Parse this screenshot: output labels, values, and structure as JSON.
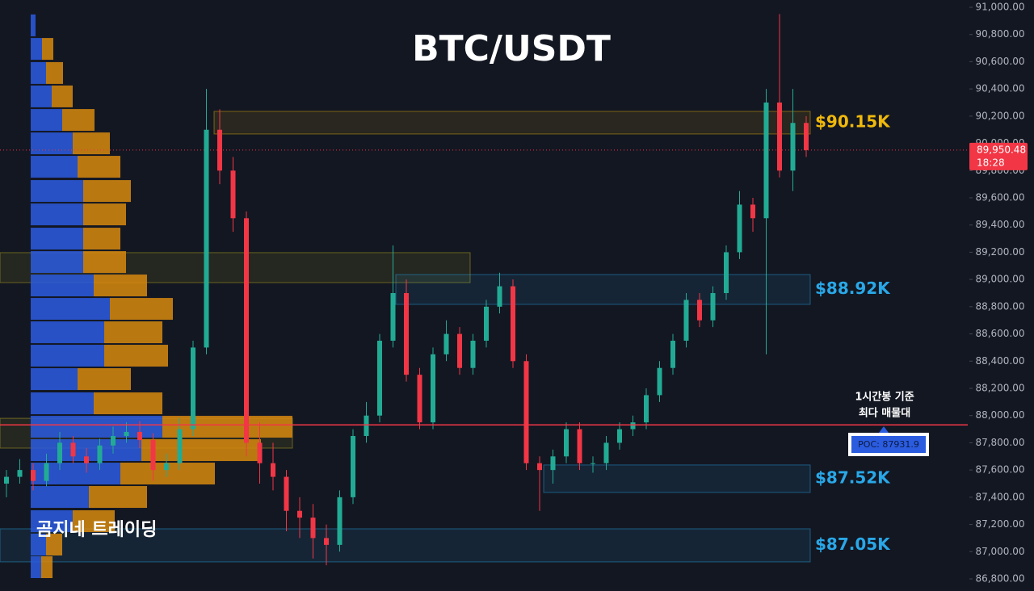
{
  "chart_data": {
    "type": "candlestick",
    "title": "BTC/USDT",
    "watermark": "곰지네 트레이딩",
    "up_color": "#22ab94",
    "down_color": "#f23645",
    "ylim": [
      86800,
      91000
    ],
    "yticks": [
      {
        "value": 91000,
        "label": "91,000.00"
      },
      {
        "value": 90800,
        "label": "90,800.00"
      },
      {
        "value": 90600,
        "label": "90,600.00"
      },
      {
        "value": 90400,
        "label": "90,400.00"
      },
      {
        "value": 90200,
        "label": "90,200.00"
      },
      {
        "value": 90000,
        "label": "90,000.00"
      },
      {
        "value": 89800,
        "label": "89,800.00"
      },
      {
        "value": 89600,
        "label": "89,600.00"
      },
      {
        "value": 89400,
        "label": "89,400.00"
      },
      {
        "value": 89200,
        "label": "89,200.00"
      },
      {
        "value": 89000,
        "label": "89,000.00"
      },
      {
        "value": 88800,
        "label": "88,800.00"
      },
      {
        "value": 88600,
        "label": "88,600.00"
      },
      {
        "value": 88400,
        "label": "88,400.00"
      },
      {
        "value": 88200,
        "label": "88,200.00"
      },
      {
        "value": 88000,
        "label": "88,000.00"
      },
      {
        "value": 87800,
        "label": "87,800.00"
      },
      {
        "value": 87600,
        "label": "87,600.00"
      },
      {
        "value": 87400,
        "label": "87,400.00"
      },
      {
        "value": 87200,
        "label": "87,200.00"
      },
      {
        "value": 87000,
        "label": "87,000.00"
      },
      {
        "value": 86800,
        "label": "86,800.00"
      }
    ],
    "grid": false,
    "candles": [
      [
        87500,
        87600,
        87400,
        87550
      ],
      [
        87550,
        87680,
        87500,
        87600
      ],
      [
        87600,
        87650,
        87450,
        87520
      ],
      [
        87520,
        87720,
        87480,
        87650
      ],
      [
        87650,
        87880,
        87600,
        87800
      ],
      [
        87800,
        87850,
        87650,
        87700
      ],
      [
        87700,
        87760,
        87580,
        87650
      ],
      [
        87650,
        87830,
        87600,
        87780
      ],
      [
        87780,
        87920,
        87720,
        87850
      ],
      [
        87850,
        87950,
        87800,
        87880
      ],
      [
        87880,
        87960,
        87760,
        87820
      ],
      [
        87820,
        87870,
        87520,
        87600
      ],
      [
        87600,
        87720,
        87550,
        87650
      ],
      [
        87650,
        87980,
        87600,
        87900
      ],
      [
        87900,
        88550,
        87850,
        88500
      ],
      [
        88500,
        90400,
        88450,
        90100
      ],
      [
        90100,
        90250,
        89700,
        89800
      ],
      [
        89800,
        89900,
        89350,
        89450
      ],
      [
        89450,
        89500,
        87700,
        87800
      ],
      [
        87800,
        87950,
        87500,
        87650
      ],
      [
        87650,
        87800,
        87450,
        87550
      ],
      [
        87550,
        87600,
        87150,
        87300
      ],
      [
        87300,
        87400,
        87100,
        87250
      ],
      [
        87250,
        87350,
        86950,
        87100
      ],
      [
        87100,
        87200,
        86900,
        87050
      ],
      [
        87050,
        87450,
        87000,
        87400
      ],
      [
        87400,
        87900,
        87350,
        87850
      ],
      [
        87850,
        88100,
        87800,
        88000
      ],
      [
        88000,
        88600,
        87950,
        88550
      ],
      [
        88550,
        89250,
        88500,
        88900
      ],
      [
        88900,
        89000,
        88250,
        88300
      ],
      [
        88300,
        88350,
        87900,
        87950
      ],
      [
        87950,
        88500,
        87900,
        88450
      ],
      [
        88450,
        88700,
        88400,
        88600
      ],
      [
        88600,
        88650,
        88300,
        88350
      ],
      [
        88350,
        88600,
        88300,
        88550
      ],
      [
        88550,
        88850,
        88500,
        88800
      ],
      [
        88800,
        89050,
        88750,
        88950
      ],
      [
        88950,
        89000,
        88350,
        88400
      ],
      [
        88400,
        88450,
        87600,
        87650
      ],
      [
        87650,
        87700,
        87300,
        87600
      ],
      [
        87600,
        87750,
        87500,
        87700
      ],
      [
        87700,
        87950,
        87650,
        87900
      ],
      [
        87900,
        87950,
        87600,
        87650
      ],
      [
        87650,
        87700,
        87580,
        87650
      ],
      [
        87650,
        87850,
        87600,
        87800
      ],
      [
        87800,
        87950,
        87750,
        87900
      ],
      [
        87900,
        88000,
        87850,
        87950
      ],
      [
        87950,
        88200,
        87900,
        88150
      ],
      [
        88150,
        88400,
        88100,
        88350
      ],
      [
        88350,
        88600,
        88300,
        88550
      ],
      [
        88550,
        88900,
        88500,
        88850
      ],
      [
        88850,
        88900,
        88650,
        88700
      ],
      [
        88700,
        88950,
        88650,
        88900
      ],
      [
        88900,
        89250,
        88850,
        89200
      ],
      [
        89200,
        89650,
        89150,
        89550
      ],
      [
        89550,
        89600,
        89350,
        89450
      ],
      [
        89450,
        90400,
        88450,
        90300
      ],
      [
        90300,
        90950,
        89750,
        89800
      ],
      [
        89800,
        90400,
        89650,
        90150
      ],
      [
        90150,
        90200,
        89900,
        89950.48
      ]
    ],
    "volume_profile": {
      "price": [
        90867,
        90694,
        90517,
        90345,
        90172,
        90000,
        89828,
        89650,
        89478,
        89300,
        89128,
        88956,
        88784,
        88612,
        88440,
        88268,
        88090,
        87918,
        87746,
        87574,
        87402,
        87224,
        87052,
        86886
      ],
      "buy": [
        6,
        14,
        19,
        26,
        39,
        52,
        58,
        65,
        65,
        65,
        65,
        78,
        98,
        91,
        91,
        58,
        78,
        163,
        137,
        111,
        72,
        52,
        19,
        13
      ],
      "sell": [
        0,
        14,
        21,
        26,
        40,
        46,
        53,
        59,
        53,
        46,
        53,
        66,
        78,
        72,
        79,
        66,
        85,
        161,
        148,
        117,
        72,
        52,
        20,
        14
      ],
      "buy_color": "#2b5ce0",
      "sell_color": "#d88a0e"
    },
    "zones": [
      {
        "low": 90069,
        "high": 90235,
        "label": "$90.15K",
        "color": "#f0b90b"
      },
      {
        "low": 88977,
        "high": 89197,
        "color": "#c8b820"
      },
      {
        "low": 88817,
        "high": 89036,
        "label": "$88.92K",
        "color": "#29a8e8"
      },
      {
        "low": 87761,
        "high": 87980,
        "color": "#c8b820"
      },
      {
        "low": 87435,
        "high": 87637,
        "label": "$87.52K",
        "color": "#29a8e8"
      },
      {
        "low": 86925,
        "high": 87168,
        "label": "$87.05K",
        "color": "#29a8e8"
      }
    ],
    "poc": {
      "value": 87931.9,
      "label": "POC: 87931.9"
    },
    "poc_note": [
      "1시간봉 기준",
      "최다 매물대"
    ],
    "current_price": {
      "value": 89950.48,
      "label": "89,950.48"
    },
    "countdown": "18:28"
  }
}
